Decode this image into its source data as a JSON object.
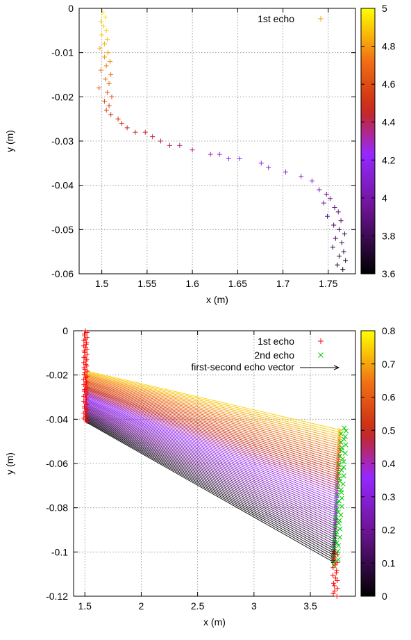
{
  "chart_data": [
    {
      "type": "scatter",
      "xlabel": "x (m)",
      "ylabel": "y (m)",
      "xlim": [
        1.475,
        1.78
      ],
      "ylim": [
        -0.06,
        0
      ],
      "x_ticks": [
        1.5,
        1.55,
        1.6,
        1.65,
        1.7,
        1.75
      ],
      "x_tick_labels": [
        "1.5",
        "1.55",
        "1.6",
        "1.65",
        "1.7",
        "1.75"
      ],
      "y_ticks": [
        0,
        -0.01,
        -0.02,
        -0.03,
        -0.04,
        -0.05,
        -0.06
      ],
      "y_tick_labels": [
        "0",
        "-0.01",
        "-0.02",
        "-0.03",
        "-0.04",
        "-0.05",
        "-0.06"
      ],
      "grid": true,
      "legend_position": "top-right",
      "legend": [
        {
          "label": "1st echo",
          "marker": "+",
          "color": "#f0a020"
        }
      ],
      "colorbar": {
        "range": [
          3.6,
          5.0
        ],
        "ticks": [
          3.6,
          3.8,
          4.0,
          4.2,
          4.4,
          4.6,
          4.8,
          5.0
        ],
        "tick_labels": [
          "3.6",
          "3.8",
          "4",
          "4.2",
          "4.4",
          "4.6",
          "4.8",
          "5"
        ],
        "palette": "black-purple-red-orange-yellow"
      },
      "series": [
        {
          "name": "1st echo",
          "marker": "+",
          "points": [
            [
              1.501,
              -0.001,
              4.95
            ],
            [
              1.504,
              -0.002,
              4.93
            ],
            [
              1.499,
              -0.003,
              4.92
            ],
            [
              1.502,
              -0.004,
              4.91
            ],
            [
              1.505,
              -0.005,
              4.9
            ],
            [
              1.5,
              -0.006,
              4.88
            ],
            [
              1.506,
              -0.007,
              4.87
            ],
            [
              1.503,
              -0.008,
              4.85
            ],
            [
              1.498,
              -0.009,
              4.84
            ],
            [
              1.507,
              -0.01,
              4.82
            ],
            [
              1.503,
              -0.011,
              4.8
            ],
            [
              1.509,
              -0.012,
              4.78
            ],
            [
              1.505,
              -0.013,
              4.76
            ],
            [
              1.499,
              -0.014,
              4.74
            ],
            [
              1.51,
              -0.015,
              4.72
            ],
            [
              1.504,
              -0.016,
              4.7
            ],
            [
              1.508,
              -0.017,
              4.68
            ],
            [
              1.497,
              -0.018,
              4.66
            ],
            [
              1.506,
              -0.019,
              4.64
            ],
            [
              1.511,
              -0.02,
              4.62
            ],
            [
              1.503,
              -0.021,
              4.6
            ],
            [
              1.508,
              -0.022,
              4.58
            ],
            [
              1.505,
              -0.023,
              4.56
            ],
            [
              1.51,
              -0.024,
              4.54
            ],
            [
              1.518,
              -0.025,
              4.52
            ],
            [
              1.522,
              -0.026,
              4.5
            ],
            [
              1.528,
              -0.027,
              4.48
            ],
            [
              1.537,
              -0.028,
              4.46
            ],
            [
              1.548,
              -0.028,
              4.44
            ],
            [
              1.556,
              -0.029,
              4.42
            ],
            [
              1.565,
              -0.03,
              4.4
            ],
            [
              1.575,
              -0.031,
              4.38
            ],
            [
              1.586,
              -0.031,
              4.36
            ],
            [
              1.6,
              -0.032,
              4.34
            ],
            [
              1.62,
              -0.033,
              4.3
            ],
            [
              1.63,
              -0.033,
              4.27
            ],
            [
              1.64,
              -0.034,
              4.25
            ],
            [
              1.652,
              -0.034,
              4.22
            ],
            [
              1.676,
              -0.035,
              4.19
            ],
            [
              1.684,
              -0.036,
              4.16
            ],
            [
              1.703,
              -0.037,
              4.12
            ],
            [
              1.72,
              -0.038,
              4.08
            ],
            [
              1.732,
              -0.039,
              4.05
            ],
            [
              1.74,
              -0.041,
              4.02
            ],
            [
              1.748,
              -0.042,
              3.99
            ],
            [
              1.752,
              -0.043,
              3.96
            ],
            [
              1.745,
              -0.044,
              3.94
            ],
            [
              1.757,
              -0.045,
              3.92
            ],
            [
              1.761,
              -0.046,
              3.9
            ],
            [
              1.749,
              -0.047,
              3.88
            ],
            [
              1.764,
              -0.048,
              3.86
            ],
            [
              1.756,
              -0.049,
              3.84
            ],
            [
              1.762,
              -0.05,
              3.82
            ],
            [
              1.768,
              -0.051,
              3.8
            ],
            [
              1.758,
              -0.052,
              3.78
            ],
            [
              1.765,
              -0.053,
              3.76
            ],
            [
              1.755,
              -0.054,
              3.74
            ],
            [
              1.767,
              -0.055,
              3.72
            ],
            [
              1.762,
              -0.056,
              3.7
            ],
            [
              1.769,
              -0.057,
              3.68
            ],
            [
              1.76,
              -0.058,
              3.66
            ],
            [
              1.766,
              -0.059,
              3.64
            ]
          ]
        }
      ]
    },
    {
      "type": "scatter",
      "xlabel": "x (m)",
      "ylabel": "y (m)",
      "xlim": [
        1.4,
        3.9
      ],
      "ylim": [
        -0.12,
        0
      ],
      "x_ticks": [
        1.5,
        2,
        2.5,
        3,
        3.5
      ],
      "x_tick_labels": [
        "1.5",
        "2",
        "2.5",
        "3",
        "3.5"
      ],
      "y_ticks": [
        0,
        -0.02,
        -0.04,
        -0.06,
        -0.08,
        -0.1,
        -0.12
      ],
      "y_tick_labels": [
        "0",
        "-0.02",
        "-0.04",
        "-0.06",
        "-0.08",
        "-0.1",
        "-0.12"
      ],
      "grid": true,
      "legend_position": "top-right",
      "legend": [
        {
          "label": "1st echo",
          "marker": "+",
          "color": "#ff0000"
        },
        {
          "label": "2nd echo",
          "marker": "x",
          "color": "#00cc00"
        },
        {
          "label": "first-second echo vector",
          "marker": "arrow",
          "color": "#000000"
        }
      ],
      "colorbar": {
        "range": [
          0,
          0.8
        ],
        "ticks": [
          0,
          0.1,
          0.2,
          0.3,
          0.4,
          0.5,
          0.6,
          0.7,
          0.8
        ],
        "tick_labels": [
          "0",
          "0.1",
          "0.2",
          "0.3",
          "0.4",
          "0.5",
          "0.6",
          "0.7",
          "0.8"
        ],
        "palette": "black-purple-red-orange-yellow"
      },
      "series": [
        {
          "name": "1st echo",
          "marker": "+",
          "color": "#ff0000",
          "segments": [
            {
              "x_range": [
                1.49,
                1.52
              ],
              "y_range": [
                0,
                -0.041
              ]
            },
            {
              "x_range": [
                3.7,
                3.74
              ],
              "y_range": [
                -0.1,
                -0.12
              ]
            }
          ]
        },
        {
          "name": "2nd echo",
          "marker": "x",
          "color": "#00cc00",
          "range": {
            "x_range": [
              3.7,
              3.82
            ],
            "y_range": [
              -0.044,
              -0.106
            ]
          }
        },
        {
          "name": "first-second echo vector",
          "type": "arrows",
          "count": 60,
          "start": {
            "x": 1.5,
            "y_top": -0.018,
            "y_bottom": -0.041
          },
          "end": {
            "x_top": 3.78,
            "y_top": -0.045,
            "x_bottom": 3.72,
            "y_bottom": -0.105
          },
          "color_value_range": [
            0.75,
            0.0
          ]
        }
      ]
    }
  ]
}
